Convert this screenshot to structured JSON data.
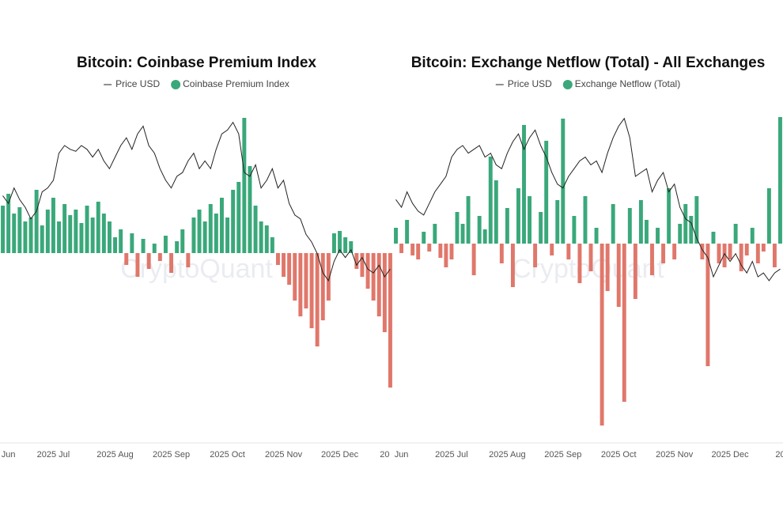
{
  "chart_data": [
    {
      "type": "bar",
      "title": "Bitcoin: Coinbase Premium Index",
      "watermark": "CryptoQuant",
      "categories": [
        null,
        "Jun",
        null,
        null,
        null,
        null,
        null,
        null,
        null,
        "2025 Jul",
        null,
        null,
        null,
        null,
        null,
        null,
        null,
        null,
        null,
        null,
        "2025 Aug",
        null,
        null,
        null,
        null,
        null,
        null,
        null,
        null,
        null,
        "2025 Sep",
        null,
        null,
        null,
        null,
        null,
        null,
        null,
        null,
        null,
        "2025 Oct",
        null,
        null,
        null,
        null,
        null,
        null,
        null,
        null,
        null,
        "2025 Nov",
        null,
        null,
        null,
        null,
        null,
        null,
        null,
        null,
        null,
        "2025 Dec",
        null,
        null,
        null,
        null,
        null,
        null,
        null,
        "20",
        null
      ],
      "ylim": [
        -240,
        180
      ],
      "y2lim": [
        42000,
        128000
      ],
      "series": [
        {
          "name": "Price USD",
          "type": "line",
          "axis": "y2",
          "color": "#222222",
          "values": [
            106000,
            104000,
            108000,
            105000,
            103000,
            100000,
            102000,
            107000,
            108000,
            110000,
            117000,
            119000,
            118000,
            117500,
            119000,
            118000,
            116000,
            118000,
            115000,
            113000,
            116000,
            119000,
            121000,
            118000,
            122000,
            124000,
            119000,
            117000,
            113000,
            110000,
            108000,
            111000,
            112000,
            115000,
            117000,
            113000,
            115000,
            113000,
            118000,
            122000,
            123000,
            125000,
            122000,
            112000,
            111000,
            114000,
            108000,
            110000,
            113000,
            108000,
            110000,
            104000,
            101000,
            100000,
            96000,
            94000,
            91000,
            86000,
            84000,
            89000,
            92000,
            90000,
            92000,
            88000,
            90000,
            87000,
            86000,
            88000,
            85000,
            87000
          ]
        },
        {
          "name": "Coinbase Premium Index",
          "type": "bar",
          "color": "#3aa87a",
          "negative_color": "#e0776b",
          "values": [
            60,
            75,
            50,
            58,
            40,
            45,
            80,
            35,
            55,
            70,
            40,
            62,
            48,
            55,
            38,
            60,
            45,
            65,
            50,
            40,
            20,
            30,
            -15,
            25,
            -30,
            18,
            -20,
            12,
            -10,
            22,
            -25,
            15,
            30,
            -18,
            45,
            55,
            40,
            62,
            50,
            70,
            45,
            80,
            90,
            171,
            110,
            60,
            40,
            35,
            20,
            -15,
            -30,
            -40,
            -60,
            -80,
            -70,
            -95,
            -118,
            -85,
            -60,
            25,
            28,
            20,
            15,
            -20,
            -30,
            -45,
            -60,
            -80,
            -100,
            -170
          ]
        }
      ]
    },
    {
      "type": "bar",
      "title": "Bitcoin: Exchange Netflow (Total) - All Exchanges",
      "watermark": "CryptoQuant",
      "categories": [
        null,
        "Jun",
        null,
        null,
        null,
        null,
        null,
        null,
        null,
        null,
        "2025 Jul",
        null,
        null,
        null,
        null,
        null,
        null,
        null,
        null,
        null,
        "2025 Aug",
        null,
        null,
        null,
        null,
        null,
        null,
        null,
        null,
        null,
        "2025 Sep",
        null,
        null,
        null,
        null,
        null,
        null,
        null,
        null,
        null,
        "2025 Oct",
        null,
        null,
        null,
        null,
        null,
        null,
        null,
        null,
        null,
        "2025 Nov",
        null,
        null,
        null,
        null,
        null,
        null,
        null,
        null,
        null,
        "2025 Dec",
        null,
        null,
        null,
        null,
        null,
        null,
        null,
        null,
        "20"
      ],
      "ylim": [
        -252,
        168
      ],
      "y2lim": [
        42000,
        128000
      ],
      "series": [
        {
          "name": "Price USD",
          "type": "line",
          "axis": "y2",
          "color": "#222222",
          "values": [
            105000,
            103000,
            107000,
            104000,
            102000,
            101000,
            104000,
            107000,
            109000,
            111000,
            116000,
            118000,
            119000,
            117000,
            118000,
            119000,
            116000,
            117000,
            114000,
            113000,
            117000,
            120000,
            122000,
            118000,
            121000,
            123000,
            119000,
            116000,
            112000,
            109000,
            108000,
            111000,
            113000,
            115000,
            116000,
            114000,
            115000,
            112000,
            117000,
            121000,
            124000,
            126000,
            121000,
            111000,
            112000,
            113000,
            107000,
            110000,
            112000,
            107000,
            109000,
            103000,
            100000,
            99000,
            95000,
            92000,
            90000,
            85000,
            88000,
            91000,
            89000,
            91000,
            88000,
            86000,
            89000,
            85000,
            86000,
            84000,
            86000,
            87000
          ]
        },
        {
          "name": "Exchange Netflow (Total)",
          "type": "bar",
          "color": "#3aa87a",
          "negative_color": "#e0776b",
          "values": [
            20,
            -12,
            30,
            -15,
            -20,
            15,
            -10,
            25,
            -18,
            -30,
            -20,
            40,
            25,
            60,
            -40,
            35,
            18,
            110,
            80,
            -25,
            45,
            -55,
            70,
            150,
            60,
            -30,
            40,
            130,
            -15,
            55,
            158,
            -20,
            35,
            -50,
            60,
            -35,
            20,
            -230,
            -60,
            50,
            -80,
            -200,
            45,
            -70,
            55,
            30,
            -40,
            20,
            -25,
            70,
            -20,
            25,
            50,
            35,
            60,
            -20,
            -155,
            15,
            -25,
            -30,
            -20,
            25,
            -35,
            -15,
            20,
            -25,
            -10,
            70,
            -30,
            160
          ]
        }
      ]
    }
  ]
}
